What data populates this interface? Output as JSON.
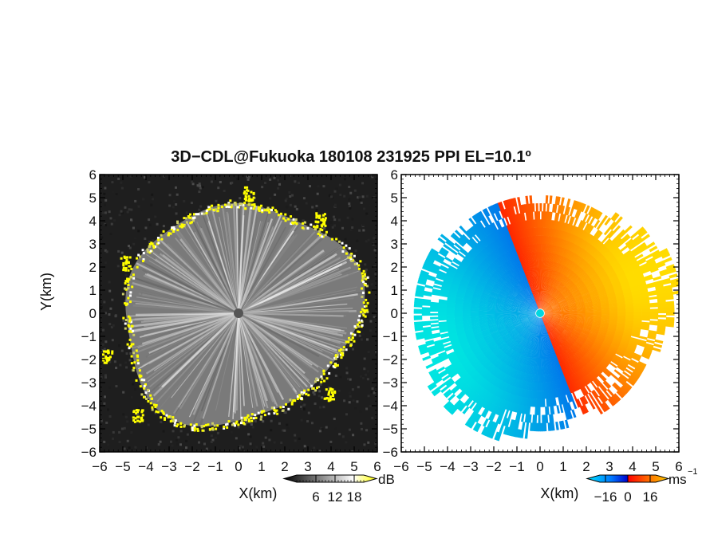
{
  "title": "3D−CDL@Fukuoka 180108 231925 PPI EL=10.1º",
  "chart_data": [
    {
      "type": "heatmap",
      "panel": "left",
      "quantity": "reflectivity",
      "xlabel": "X(km)",
      "ylabel": "Y(km)",
      "xlim": [
        -6,
        6
      ],
      "ylim": [
        -6,
        6
      ],
      "xticks": [
        "−6",
        "−5",
        "−4",
        "−3",
        "−2",
        "−1",
        "0",
        "1",
        "2",
        "3",
        "4",
        "5",
        "6"
      ],
      "yticks": [
        "6",
        "5",
        "4",
        "3",
        "2",
        "1",
        "0",
        "−1",
        "−2",
        "−3",
        "−4",
        "−5",
        "−6"
      ],
      "colorbar": {
        "label": "dB",
        "ticks": [
          "6",
          "12",
          "18"
        ],
        "range": [
          0,
          21
        ],
        "colors": [
          "#000000",
          "#ffffff",
          "#ffff00"
        ]
      },
      "background": "#1e1e1e",
      "radar_center": [
        0,
        0
      ]
    },
    {
      "type": "heatmap",
      "panel": "right",
      "quantity": "doppler velocity",
      "xlabel": "X(km)",
      "xlim": [
        -6,
        6
      ],
      "ylim": [
        -6,
        6
      ],
      "xticks": [
        "−6",
        "−5",
        "−4",
        "−3",
        "−2",
        "−1",
        "0",
        "1",
        "2",
        "3",
        "4",
        "5",
        "6"
      ],
      "yticks": [
        "6",
        "5",
        "4",
        "3",
        "2",
        "1",
        "0",
        "−1",
        "−2",
        "−3",
        "−4",
        "−5",
        "−6"
      ],
      "colorbar": {
        "label": "ms",
        "label_sup": "−1",
        "ticks": [
          "−16",
          "0",
          "16"
        ],
        "range": [
          -20,
          20
        ],
        "colors": [
          "#00e5ff",
          "#0066ff",
          "#0000cc",
          "#ff0000",
          "#ff6600",
          "#ffcc00"
        ]
      },
      "radar_center": [
        0,
        0
      ]
    }
  ]
}
